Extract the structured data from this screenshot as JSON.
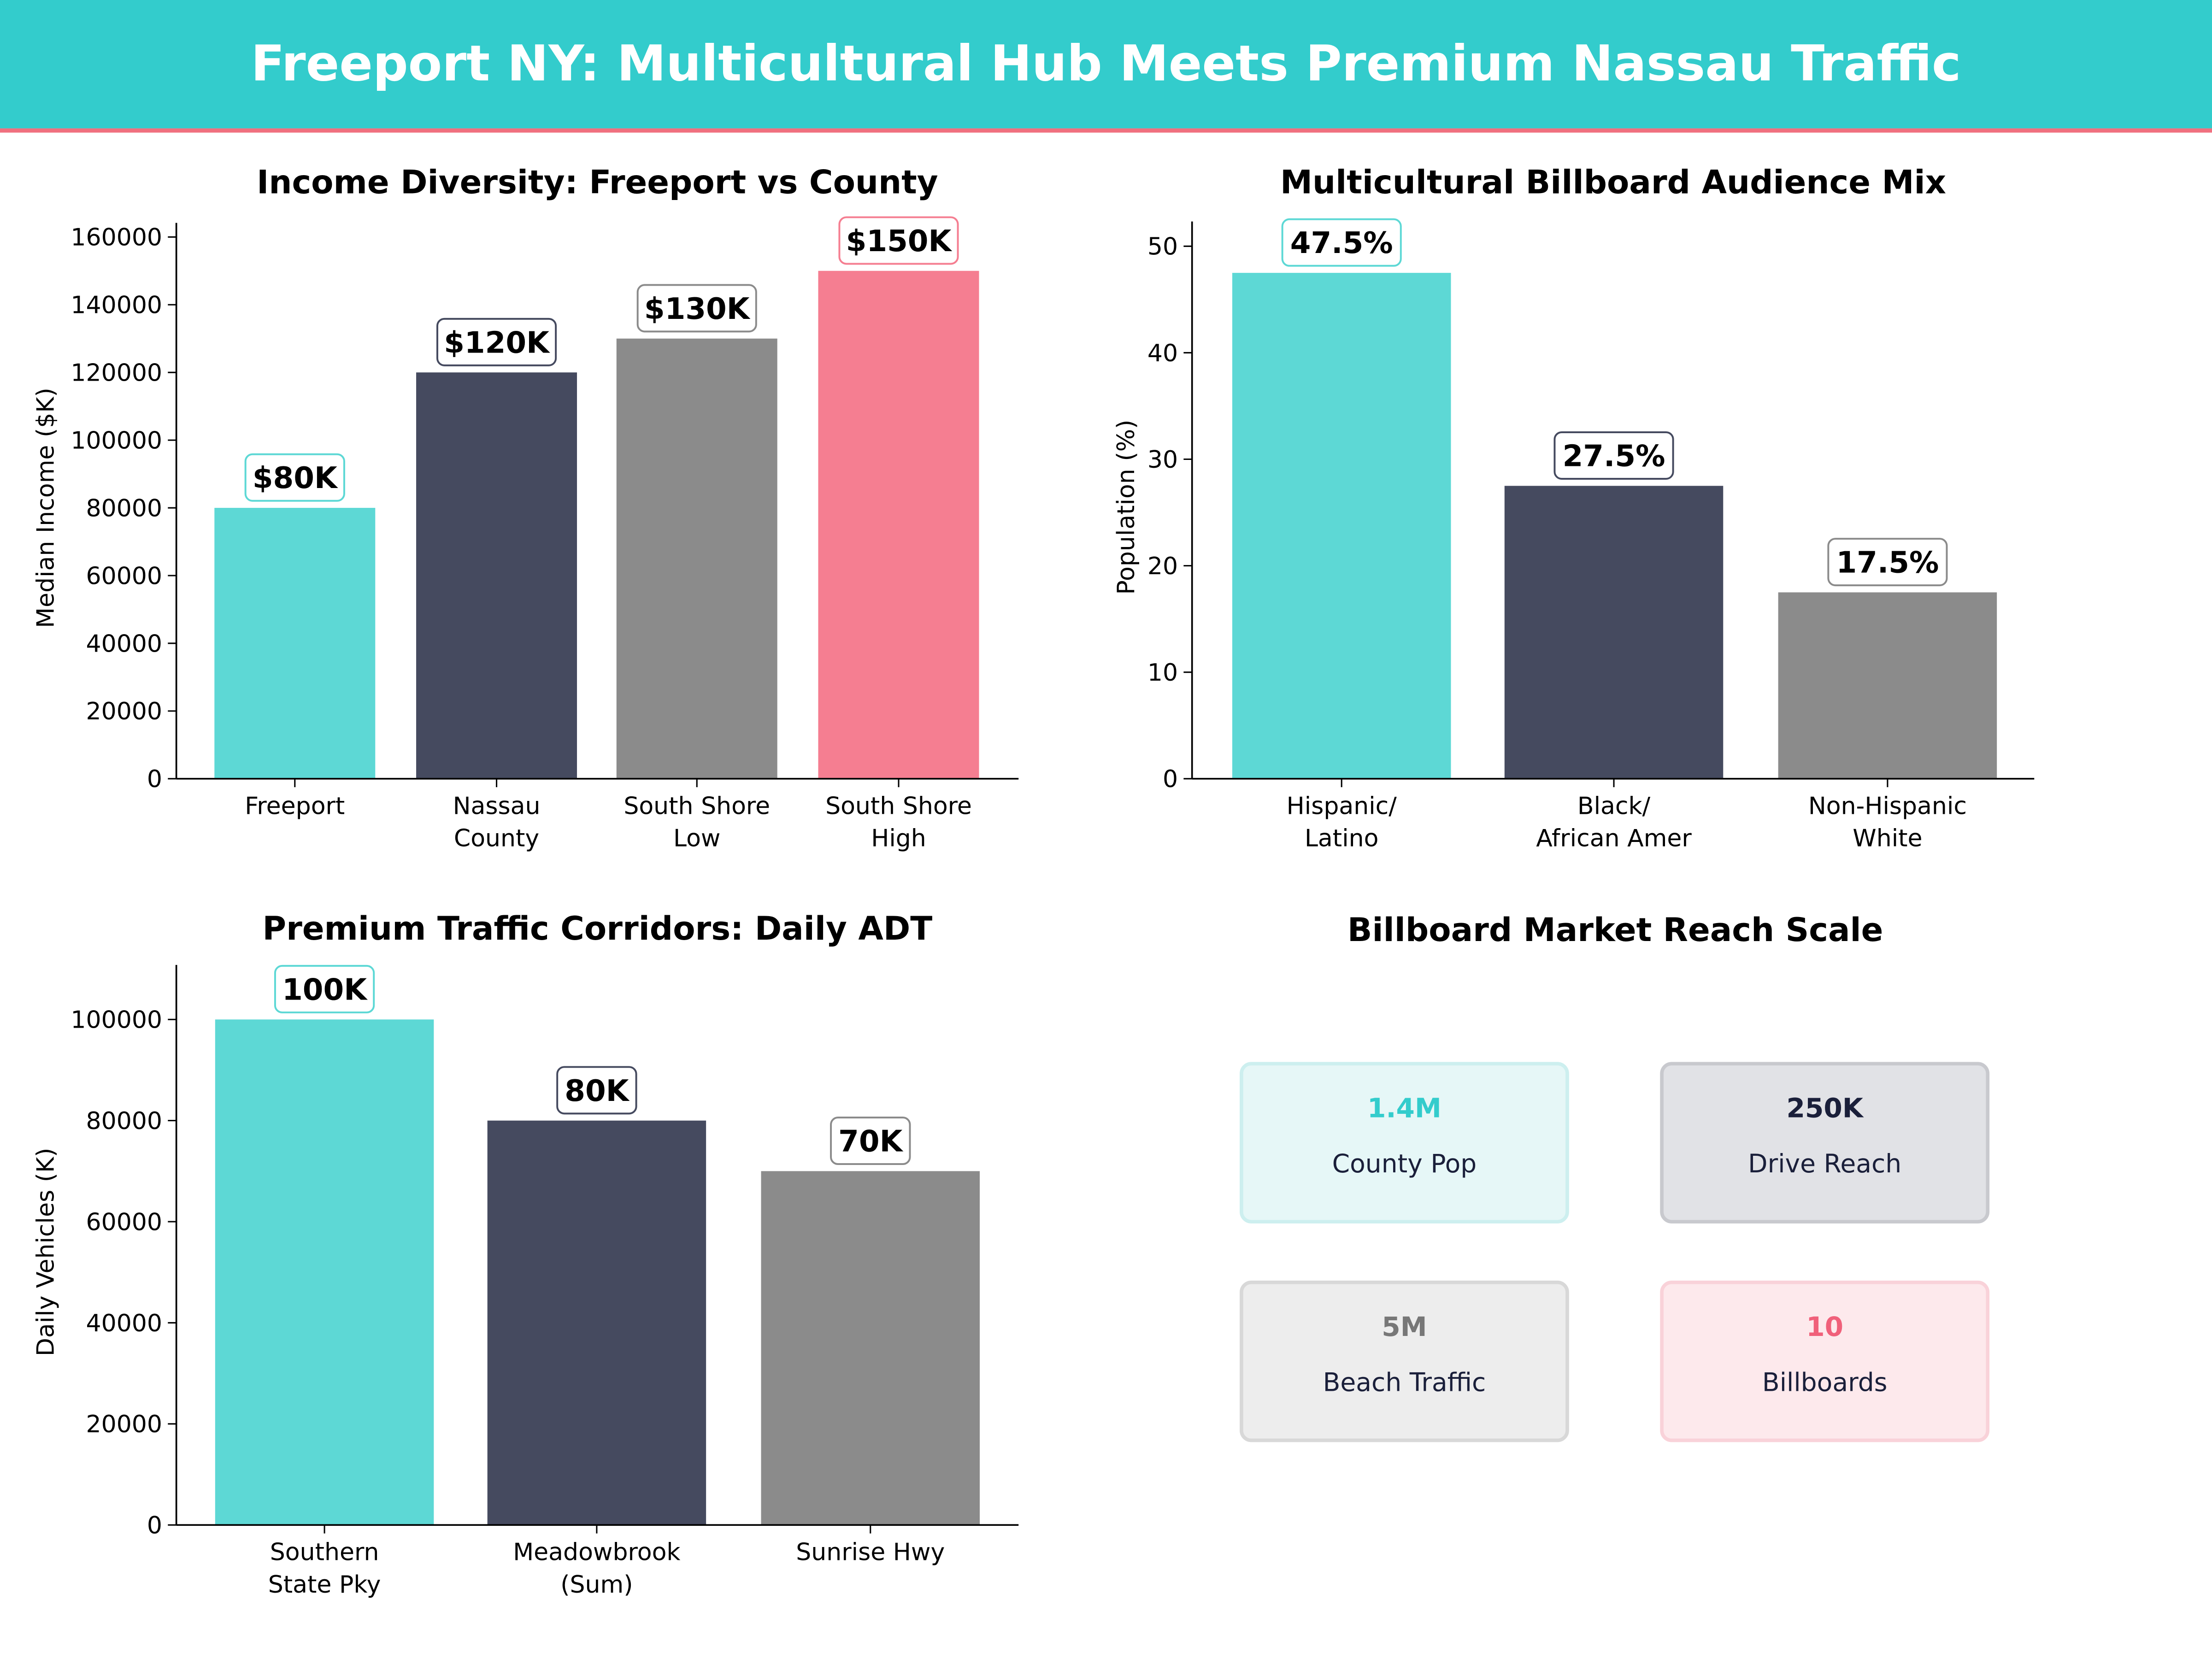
{
  "header": {
    "title": "Freeport NY: Multicultural Hub Meets Premium Nassau Traffic",
    "bg_color": "#33CCCC",
    "accent_line": "#F0707F"
  },
  "colors": {
    "teal": "#5DD8D5",
    "navy": "#454A5F",
    "gray": "#8B8B8B",
    "pink": "#F57E91"
  },
  "chart_data": [
    {
      "type": "bar",
      "title": "Income Diversity: Freeport vs County",
      "ylabel": "Median Income ($K)",
      "categories": [
        [
          "Freeport"
        ],
        [
          "Nassau",
          "County"
        ],
        [
          "South Shore",
          "Low"
        ],
        [
          "South Shore",
          "High"
        ]
      ],
      "values": [
        80000,
        120000,
        130000,
        150000
      ],
      "data_labels": [
        "$80K",
        "$120K",
        "$130K",
        "$150K"
      ],
      "colors": [
        "#5DD8D5",
        "#454A5F",
        "#8B8B8B",
        "#F57E91"
      ],
      "ylim": [
        0,
        160000
      ],
      "yticks": [
        0,
        20000,
        40000,
        60000,
        80000,
        100000,
        120000,
        140000,
        160000
      ],
      "grid": false
    },
    {
      "type": "bar",
      "title": "Multicultural Billboard Audience Mix",
      "ylabel": "Population (%)",
      "categories": [
        [
          "Hispanic/",
          "Latino"
        ],
        [
          "Black/",
          "African Amer"
        ],
        [
          "Non-Hispanic",
          "White"
        ]
      ],
      "values": [
        47.5,
        27.5,
        17.5
      ],
      "data_labels": [
        "47.5%",
        "27.5%",
        "17.5%"
      ],
      "colors": [
        "#5DD8D5",
        "#454A5F",
        "#8B8B8B"
      ],
      "ylim": [
        0,
        51
      ],
      "yticks": [
        0,
        10,
        20,
        30,
        40,
        50
      ],
      "grid": false
    },
    {
      "type": "bar",
      "title": "Premium Traffic Corridors: Daily ADT",
      "ylabel": "Daily Vehicles (K)",
      "categories": [
        [
          "Southern",
          "State Pky"
        ],
        [
          "Meadowbrook",
          "(Sum)"
        ],
        [
          "Sunrise Hwy"
        ]
      ],
      "values": [
        100000,
        80000,
        70000
      ],
      "data_labels": [
        "100K",
        "80K",
        "70K"
      ],
      "colors": [
        "#5DD8D5",
        "#454A5F",
        "#8B8B8B"
      ],
      "ylim": [
        0,
        108000
      ],
      "yticks": [
        0,
        20000,
        40000,
        60000,
        80000,
        100000
      ],
      "grid": false
    }
  ],
  "reach": {
    "title": "Billboard Market Reach Scale",
    "cards": [
      {
        "value": "1.4M",
        "label": "County Pop",
        "value_color": "#33CCCC",
        "bg": "#E6F7F7",
        "border": "#CDEFEF"
      },
      {
        "value": "250K",
        "label": "Drive Reach",
        "value_color": "#1A1F3A",
        "bg": "#E1E2E6",
        "border": "#C8C9CE"
      },
      {
        "value": "5M",
        "label": "Beach Traffic",
        "value_color": "#777777",
        "bg": "#EDEDED",
        "border": "#D8D8D8"
      },
      {
        "value": "10",
        "label": "Billboards",
        "value_color": "#F0607A",
        "bg": "#FDE9EC",
        "border": "#F9D2D9"
      }
    ]
  }
}
